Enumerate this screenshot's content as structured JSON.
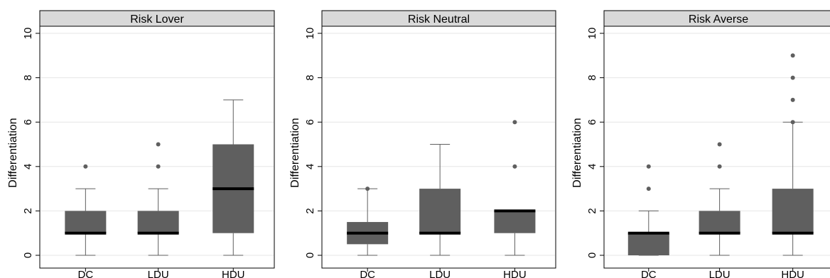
{
  "colors": {
    "box_fill": "#5f5f5f",
    "median": "#000000",
    "whisker": "#5f5f5f",
    "outlier": "#5f5f5f",
    "strip_fill": "#d9d9d9",
    "grid": "#e6e6e6",
    "frame": "#000000"
  },
  "chart_data": [
    {
      "type": "box",
      "title": "Risk Lover",
      "ylabel": "Differentiation",
      "xlabel": "",
      "ylim": [
        0,
        10
      ],
      "yticks": [
        "0",
        "2",
        "4",
        "6",
        "8",
        "10"
      ],
      "grid": true,
      "categories": [
        "DC",
        "LDU",
        "HDU"
      ],
      "boxes": [
        {
          "category": "DC",
          "min": 0,
          "q1": 1,
          "median": 1,
          "q3": 2,
          "max": 3,
          "outliers": [
            4
          ]
        },
        {
          "category": "LDU",
          "min": 0,
          "q1": 1,
          "median": 1,
          "q3": 2,
          "max": 3,
          "outliers": [
            4,
            5
          ]
        },
        {
          "category": "HDU",
          "min": 0,
          "q1": 1,
          "median": 3,
          "q3": 5,
          "max": 7,
          "outliers": []
        }
      ]
    },
    {
      "type": "box",
      "title": "Risk Neutral",
      "ylabel": "Differentiation",
      "xlabel": "",
      "ylim": [
        0,
        10
      ],
      "yticks": [
        "0",
        "2",
        "4",
        "6",
        "8",
        "10"
      ],
      "grid": true,
      "categories": [
        "DC",
        "LDU",
        "HDU"
      ],
      "boxes": [
        {
          "category": "DC",
          "min": 0,
          "q1": 0.5,
          "median": 1,
          "q3": 1.5,
          "max": 3,
          "outliers": [
            3
          ]
        },
        {
          "category": "LDU",
          "min": 0,
          "q1": 1,
          "median": 1,
          "q3": 3,
          "max": 5,
          "outliers": []
        },
        {
          "category": "HDU",
          "min": 0,
          "q1": 1,
          "median": 2,
          "q3": 2,
          "max": 2,
          "outliers": [
            4,
            6
          ]
        }
      ]
    },
    {
      "type": "box",
      "title": "Risk Averse",
      "ylabel": "Differentiation",
      "xlabel": "",
      "ylim": [
        0,
        10
      ],
      "yticks": [
        "0",
        "2",
        "4",
        "6",
        "8",
        "10"
      ],
      "grid": true,
      "categories": [
        "DC",
        "LDU",
        "HDU"
      ],
      "boxes": [
        {
          "category": "DC",
          "min": 0,
          "q1": 0,
          "median": 1,
          "q3": 1,
          "max": 2,
          "outliers": [
            3,
            4
          ]
        },
        {
          "category": "LDU",
          "min": 0,
          "q1": 1,
          "median": 1,
          "q3": 2,
          "max": 3,
          "outliers": [
            4,
            5
          ]
        },
        {
          "category": "HDU",
          "min": 0,
          "q1": 1,
          "median": 1,
          "q3": 3,
          "max": 6,
          "outliers": [
            6,
            7,
            8,
            9
          ]
        }
      ]
    }
  ]
}
